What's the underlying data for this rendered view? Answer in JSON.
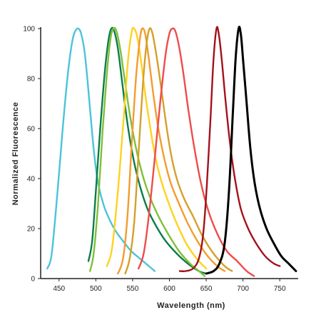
{
  "chart_data": {
    "type": "line",
    "title": "",
    "xlabel": "Wavelength (nm)",
    "ylabel": "Normalized  Fluorescence",
    "xlim": [
      425,
      775
    ],
    "ylim": [
      0,
      100
    ],
    "xticks": [
      450,
      500,
      550,
      600,
      650,
      700,
      750
    ],
    "yticks": [
      0,
      20,
      40,
      60,
      80,
      100
    ],
    "grid": false,
    "legend": "none",
    "series": [
      {
        "color": "#4cc3d9",
        "points": [
          [
            434,
            4
          ],
          [
            440,
            10
          ],
          [
            448,
            35
          ],
          [
            455,
            60
          ],
          [
            462,
            82
          ],
          [
            468,
            95
          ],
          [
            472,
            99
          ],
          [
            476,
            100
          ],
          [
            480,
            98
          ],
          [
            485,
            90
          ],
          [
            490,
            75
          ],
          [
            496,
            55
          ],
          [
            502,
            40
          ],
          [
            510,
            30
          ],
          [
            518,
            24
          ],
          [
            527,
            19
          ],
          [
            537,
            15
          ],
          [
            548,
            11
          ],
          [
            560,
            8
          ],
          [
            572,
            5
          ],
          [
            580,
            3
          ]
        ]
      },
      {
        "color": "#0b7d4a",
        "points": [
          [
            490,
            7
          ],
          [
            495,
            15
          ],
          [
            500,
            35
          ],
          [
            506,
            60
          ],
          [
            512,
            82
          ],
          [
            517,
            95
          ],
          [
            521,
            100
          ],
          [
            525,
            99
          ],
          [
            530,
            92
          ],
          [
            536,
            78
          ],
          [
            543,
            62
          ],
          [
            551,
            48
          ],
          [
            560,
            37
          ],
          [
            570,
            28
          ],
          [
            582,
            21
          ],
          [
            595,
            15
          ],
          [
            610,
            10
          ],
          [
            625,
            6
          ],
          [
            640,
            3
          ],
          [
            650,
            2
          ]
        ]
      },
      {
        "color": "#7fbf3a",
        "points": [
          [
            492,
            3
          ],
          [
            497,
            10
          ],
          [
            503,
            30
          ],
          [
            509,
            58
          ],
          [
            515,
            82
          ],
          [
            520,
            96
          ],
          [
            524,
            100
          ],
          [
            528,
            99
          ],
          [
            533,
            92
          ],
          [
            539,
            80
          ],
          [
            546,
            66
          ],
          [
            554,
            53
          ],
          [
            563,
            42
          ],
          [
            573,
            33
          ],
          [
            585,
            25
          ],
          [
            598,
            18
          ],
          [
            613,
            11
          ],
          [
            628,
            6
          ],
          [
            640,
            3
          ],
          [
            648,
            1
          ]
        ]
      },
      {
        "color": "#ffd21f",
        "points": [
          [
            515,
            5
          ],
          [
            522,
            12
          ],
          [
            530,
            35
          ],
          [
            538,
            65
          ],
          [
            544,
            88
          ],
          [
            549,
            99
          ],
          [
            552,
            100
          ],
          [
            556,
            97
          ],
          [
            561,
            88
          ],
          [
            567,
            74
          ],
          [
            573,
            62
          ],
          [
            580,
            50
          ],
          [
            588,
            40
          ],
          [
            598,
            31
          ],
          [
            610,
            22
          ],
          [
            623,
            14
          ],
          [
            637,
            8
          ],
          [
            650,
            4
          ]
        ]
      },
      {
        "color": "#f39c2d",
        "points": [
          [
            530,
            2
          ],
          [
            537,
            8
          ],
          [
            543,
            25
          ],
          [
            549,
            55
          ],
          [
            555,
            82
          ],
          [
            560,
            96
          ],
          [
            563,
            100
          ],
          [
            567,
            98
          ],
          [
            572,
            88
          ],
          [
            578,
            74
          ],
          [
            585,
            60
          ],
          [
            593,
            48
          ],
          [
            602,
            38
          ],
          [
            613,
            30
          ],
          [
            625,
            22
          ],
          [
            638,
            15
          ],
          [
            652,
            9
          ],
          [
            665,
            5
          ],
          [
            675,
            3
          ]
        ]
      },
      {
        "color": "#d4a02c",
        "points": [
          [
            540,
            2
          ],
          [
            546,
            8
          ],
          [
            552,
            22
          ],
          [
            558,
            50
          ],
          [
            564,
            78
          ],
          [
            569,
            94
          ],
          [
            573,
            100
          ],
          [
            577,
            98
          ],
          [
            582,
            90
          ],
          [
            588,
            78
          ],
          [
            595,
            63
          ],
          [
            602,
            50
          ],
          [
            610,
            40
          ],
          [
            620,
            32
          ],
          [
            632,
            25
          ],
          [
            645,
            17
          ],
          [
            660,
            10
          ],
          [
            675,
            5
          ],
          [
            685,
            3
          ]
        ]
      },
      {
        "color": "#f04b4b",
        "points": [
          [
            558,
            4
          ],
          [
            565,
            10
          ],
          [
            572,
            25
          ],
          [
            580,
            48
          ],
          [
            588,
            72
          ],
          [
            595,
            90
          ],
          [
            600,
            98
          ],
          [
            604,
            100
          ],
          [
            608,
            99
          ],
          [
            613,
            93
          ],
          [
            619,
            82
          ],
          [
            626,
            67
          ],
          [
            634,
            52
          ],
          [
            643,
            38
          ],
          [
            653,
            27
          ],
          [
            665,
            18
          ],
          [
            678,
            11
          ],
          [
            692,
            7
          ],
          [
            705,
            3
          ],
          [
            715,
            1
          ]
        ]
      },
      {
        "color": "#a3121b",
        "points": [
          [
            614,
            3
          ],
          [
            622,
            3
          ],
          [
            632,
            4
          ],
          [
            640,
            8
          ],
          [
            646,
            18
          ],
          [
            651,
            38
          ],
          [
            656,
            65
          ],
          [
            660,
            88
          ],
          [
            664,
            100
          ],
          [
            667,
            98
          ],
          [
            671,
            88
          ],
          [
            676,
            72
          ],
          [
            682,
            55
          ],
          [
            689,
            40
          ],
          [
            697,
            28
          ],
          [
            707,
            20
          ],
          [
            718,
            14
          ],
          [
            730,
            9
          ],
          [
            742,
            6
          ],
          [
            750,
            5
          ]
        ]
      },
      {
        "color": "#000000",
        "points": [
          [
            650,
            2
          ],
          [
            660,
            3
          ],
          [
            668,
            6
          ],
          [
            675,
            14
          ],
          [
            681,
            35
          ],
          [
            686,
            65
          ],
          [
            690,
            88
          ],
          [
            694,
            100
          ],
          [
            697,
            98
          ],
          [
            700,
            88
          ],
          [
            705,
            70
          ],
          [
            710,
            52
          ],
          [
            716,
            38
          ],
          [
            723,
            28
          ],
          [
            732,
            20
          ],
          [
            742,
            14
          ],
          [
            752,
            9
          ],
          [
            762,
            6
          ],
          [
            772,
            3
          ]
        ]
      }
    ]
  }
}
